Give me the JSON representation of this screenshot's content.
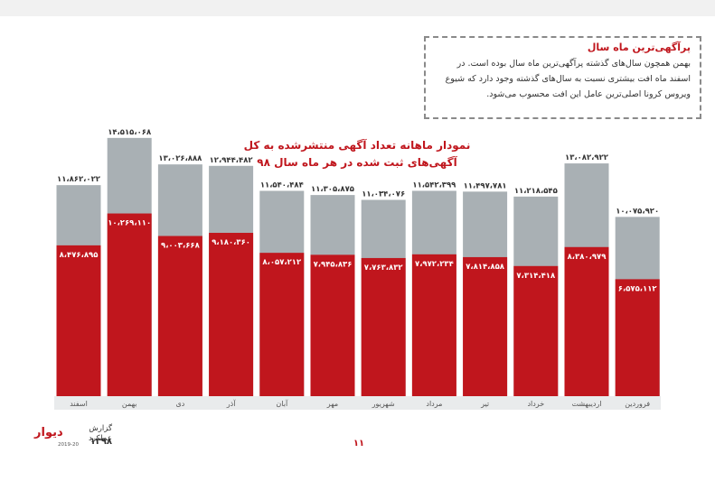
{
  "note": {
    "title": "پرآگهی‌ترین ماه سال",
    "body": "بهمن همچون سال‌های گذشته پرآگهی‌ترین ماه سال بوده است. در اسفند ماه افت بیشتری نسبت به سال‌های گذشته وجود دارد که شیوع ویروس کرونا اصلی‌ترین عامل این افت محسوب می‌شود."
  },
  "footer": {
    "logo": "دیوار",
    "report": "گزارش عملکرد",
    "year": "۱۳۹۸",
    "year_small": "2019-20",
    "page": "۱۱"
  },
  "colors": {
    "total": "#a9b0b4",
    "published": "#c0161d",
    "title": "#c0161d"
  },
  "chart_data": {
    "type": "bar",
    "title_line1": "نمودار ماهانه تعداد آگهی منتشرشده به کل",
    "title_line2": "آگهی‌های ثبت شده در هر ماه سال ۹۸",
    "categories": [
      "اسفند",
      "بهمن",
      "دی",
      "آذر",
      "آبان",
      "مهر",
      "شهریور",
      "مرداد",
      "تیر",
      "خرداد",
      "اردیبهشت",
      "فروردین"
    ],
    "series": [
      {
        "values": [
          11862022,
          14515068,
          13026888,
          12944482,
          11540484,
          11305875,
          11034076,
          11542399,
          11497781,
          11218545,
          13082922,
          10075920
        ],
        "labels": [
          "۱۱،۸۶۲،۰۲۲",
          "۱۴،۵۱۵،۰۶۸",
          "۱۳،۰۲۶،۸۸۸",
          "۱۲،۹۴۴،۴۸۲",
          "۱۱،۵۴۰،۴۸۴",
          "۱۱،۳۰۵،۸۷۵",
          "۱۱،۰۳۴،۰۷۶",
          "۱۱،۵۴۲،۳۹۹",
          "۱۱،۴۹۷،۷۸۱",
          "۱۱،۲۱۸،۵۴۵",
          "۱۳،۰۸۲،۹۲۲",
          "۱۰،۰۷۵،۹۲۰"
        ]
      },
      {
        "values": [
          8476895,
          10269110,
          9003668,
          9180360,
          8057212,
          7945836,
          7763832,
          7972234,
          7814858,
          7314418,
          8380979,
          6575112
        ],
        "labels": [
          "۸،۴۷۶،۸۹۵",
          "۱۰،۲۶۹،۱۱۰",
          "۹،۰۰۳،۶۶۸",
          "۹،۱۸۰،۳۶۰",
          "۸،۰۵۷،۲۱۲",
          "۷،۹۴۵،۸۳۶",
          "۷،۷۶۳،۸۳۲",
          "۷،۹۷۲،۲۳۴",
          "۷،۸۱۴،۸۵۸",
          "۷،۳۱۴،۴۱۸",
          "۸،۳۸۰،۹۷۹",
          "۶،۵۷۵،۱۱۲"
        ]
      }
    ],
    "ylim": [
      0,
      17500000
    ],
    "legend": "none",
    "grid": false
  }
}
